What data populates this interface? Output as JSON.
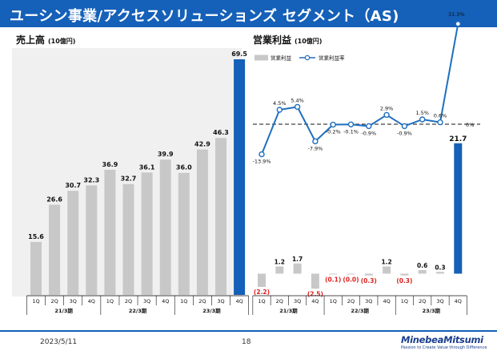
{
  "header": {
    "title": "ユーシン事業/アクセスソリューションズ セグメント（AS)"
  },
  "left_panel": {
    "title": "売上高",
    "unit": "(10億円)"
  },
  "right_panel": {
    "title": "営業利益",
    "unit": "(10億円)"
  },
  "footer": {
    "date": "2023/5/11",
    "page": "18",
    "logo": "MinebeaMitsumi",
    "tagline": "Passion to Create Value through Difference"
  },
  "colors": {
    "header": "#1560b8",
    "bar_gray": "#c8c8c8",
    "bar_blue": "#1560b8",
    "line": "#1f6fbf",
    "negative_label": "#e02020"
  },
  "chart_data": [
    {
      "type": "bar",
      "title": "売上高",
      "unit": "(10億円)",
      "categories": [
        "1Q",
        "2Q",
        "3Q",
        "4Q",
        "1Q",
        "2Q",
        "3Q",
        "4Q",
        "1Q",
        "2Q",
        "3Q",
        "4Q"
      ],
      "groups": [
        "21/3期",
        "22/3期",
        "23/3期"
      ],
      "values": [
        15.6,
        26.6,
        30.7,
        32.3,
        36.9,
        32.7,
        36.1,
        39.9,
        36.0,
        42.9,
        46.3,
        69.5
      ],
      "value_labels": [
        "15.6",
        "26.6",
        "30.7",
        "32.3",
        "36.9",
        "32.7",
        "36.1",
        "39.9",
        "36.0",
        "42.9",
        "46.3",
        "69.5"
      ],
      "highlight_index": 11,
      "ylim": [
        0,
        70
      ]
    },
    {
      "type": "bar+line",
      "title": "営業利益",
      "unit": "(10億円)",
      "categories": [
        "1Q",
        "2Q",
        "3Q",
        "4Q",
        "1Q",
        "2Q",
        "3Q",
        "4Q",
        "1Q",
        "2Q",
        "3Q",
        "4Q"
      ],
      "groups": [
        "21/3期",
        "22/3期",
        "23/3期"
      ],
      "legend": [
        "営業利益",
        "営業利益率"
      ],
      "series": [
        {
          "name": "営業利益",
          "type": "bar",
          "values": [
            -2.2,
            1.2,
            1.7,
            -2.5,
            -0.1,
            -0.04,
            -0.3,
            1.2,
            -0.3,
            0.6,
            0.3,
            21.7
          ],
          "labels": [
            "(2.2)",
            "1.2",
            "1.7",
            "(2.5)",
            "(0.1)",
            "(0.0)",
            "(0.3)",
            "1.2",
            "(0.3)",
            "0.6",
            "0.3",
            "21.7"
          ]
        },
        {
          "name": "営業利益率",
          "type": "line",
          "values": [
            -13.9,
            4.5,
            5.4,
            -7.9,
            -0.2,
            -0.1,
            -0.9,
            2.9,
            -0.9,
            1.5,
            0.6,
            31.3
          ],
          "labels": [
            "-13.9%",
            "4.5%",
            "5.4%",
            "-7.9%",
            "-0.2%",
            "-0.1%",
            "-0.9%",
            "2.9%",
            "-0.9%",
            "1.5%",
            "0.6%",
            "31.3%"
          ]
        }
      ],
      "zero_label": "0%"
    }
  ]
}
